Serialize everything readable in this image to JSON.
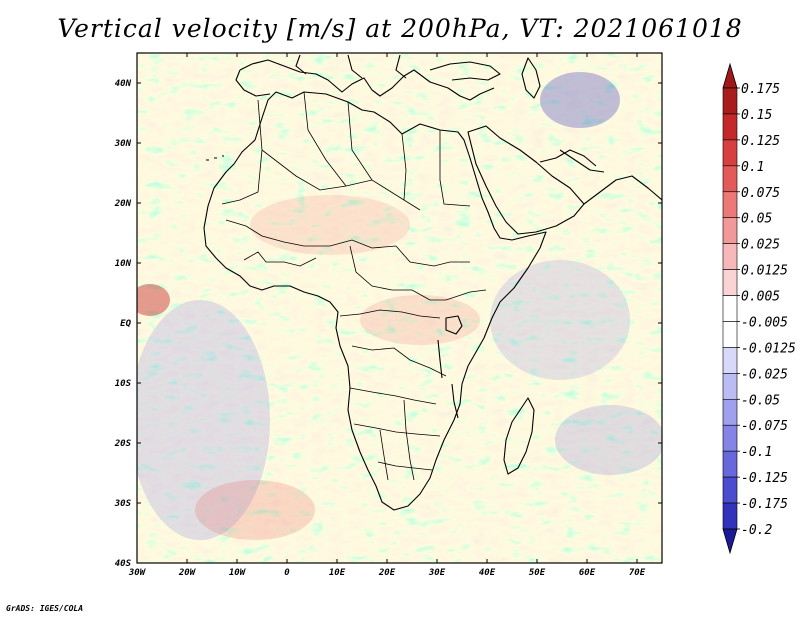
{
  "title": "Vertical velocity [m/s] at 200hPa, VT: 2021061018",
  "credit": "GrADS: IGES/COLA",
  "map": {
    "lon_range": [
      -30,
      75
    ],
    "lat_range": [
      -40,
      45
    ],
    "lon_ticks": [
      {
        "value": -30,
        "label": "30W"
      },
      {
        "value": -20,
        "label": "20W"
      },
      {
        "value": -10,
        "label": "10W"
      },
      {
        "value": 0,
        "label": "0"
      },
      {
        "value": 10,
        "label": "10E"
      },
      {
        "value": 20,
        "label": "20E"
      },
      {
        "value": 30,
        "label": "30E"
      },
      {
        "value": 40,
        "label": "40E"
      },
      {
        "value": 50,
        "label": "50E"
      },
      {
        "value": 60,
        "label": "60E"
      },
      {
        "value": 70,
        "label": "70E"
      }
    ],
    "lat_ticks": [
      {
        "value": 40,
        "label": "40N"
      },
      {
        "value": 30,
        "label": "30N"
      },
      {
        "value": 20,
        "label": "20N"
      },
      {
        "value": 10,
        "label": "10N"
      },
      {
        "value": 0,
        "label": "EQ"
      },
      {
        "value": -10,
        "label": "10S"
      },
      {
        "value": -20,
        "label": "20S"
      },
      {
        "value": -30,
        "label": "30S"
      },
      {
        "value": -40,
        "label": "40S"
      }
    ]
  },
  "colorbar": {
    "levels": [
      {
        "label": "0.175",
        "color": "#a81c1c"
      },
      {
        "label": "0.15",
        "color": "#c42828"
      },
      {
        "label": "0.125",
        "color": "#d84040"
      },
      {
        "label": "0.1",
        "color": "#e45a5a"
      },
      {
        "label": "0.075",
        "color": "#ec7878"
      },
      {
        "label": "0.05",
        "color": "#f29898"
      },
      {
        "label": "0.025",
        "color": "#f6b8b8"
      },
      {
        "label": "0.0125",
        "color": "#fad4d4"
      },
      {
        "label": "0.005",
        "color": "#ffffff"
      },
      {
        "label": "-0.005",
        "color": "#ffffff"
      },
      {
        "label": "-0.0125",
        "color": "#d8d8fa"
      },
      {
        "label": "-0.025",
        "color": "#bcbcf4"
      },
      {
        "label": "-0.05",
        "color": "#a0a0ee"
      },
      {
        "label": "-0.075",
        "color": "#8484e6"
      },
      {
        "label": "-0.1",
        "color": "#6868dc"
      },
      {
        "label": "-0.125",
        "color": "#4c4cd0"
      },
      {
        "label": "-0.175",
        "color": "#3232bc"
      },
      {
        "label": "-0.2",
        "color": "#1e1ea0"
      }
    ],
    "top_color": "#a01818",
    "bottom_color": "#1a1a96"
  }
}
